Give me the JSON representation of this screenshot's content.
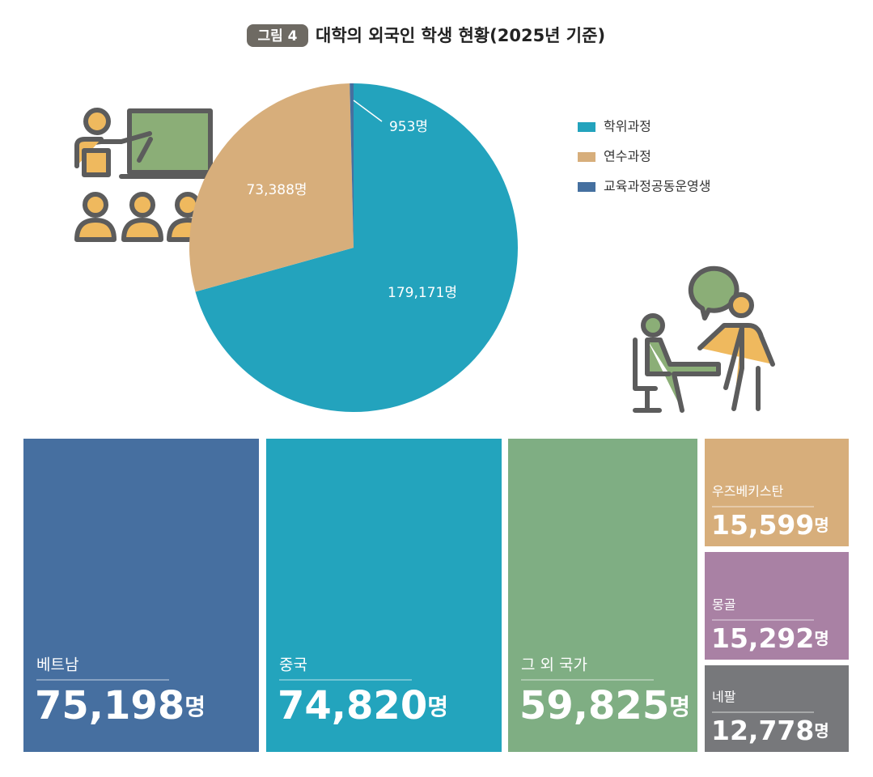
{
  "figure_label": "그림 4",
  "title": "대학의 외국인 학생 현황(2025년 기준)",
  "chart_data": [
    {
      "type": "pie",
      "categories": [
        "학위과정",
        "연수과정",
        "교육과정공동운영생"
      ],
      "values": [
        179171,
        73388,
        953
      ],
      "value_labels": [
        "179,171명",
        "73,388명",
        "953명"
      ],
      "colors": [
        "#23a3bd",
        "#d7ae7b",
        "#4570a0"
      ]
    },
    {
      "type": "treemap",
      "categories": [
        "베트남",
        "중국",
        "그 외 국가",
        "우즈베키스탄",
        "몽골",
        "네팔"
      ],
      "values": [
        75198,
        74820,
        59825,
        15599,
        15292,
        12778
      ],
      "value_labels": [
        "75,198명",
        "74,820명",
        "59,825명",
        "15,599명",
        "15,292명",
        "12,778명"
      ],
      "colors": [
        "#466fa0",
        "#23a4bd",
        "#7fae83",
        "#d7ae7b",
        "#a981a4",
        "#77787b"
      ]
    }
  ]
}
